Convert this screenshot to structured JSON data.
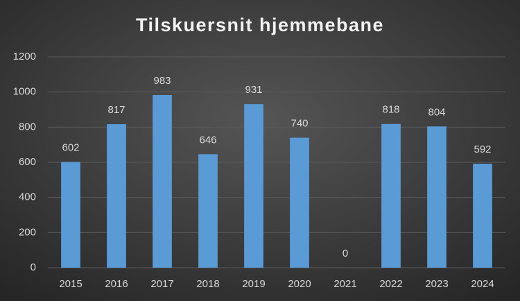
{
  "chart_data": {
    "type": "bar",
    "title": "Tilskuersnit hjemmebane",
    "categories": [
      "2015",
      "2016",
      "2017",
      "2018",
      "2019",
      "2020",
      "2021",
      "2022",
      "2023",
      "2024"
    ],
    "values": [
      602,
      817,
      983,
      646,
      931,
      740,
      0,
      818,
      804,
      592
    ],
    "color": "#5b9bd5",
    "ylim": [
      0,
      1200
    ],
    "yticks": [
      0,
      200,
      400,
      600,
      800,
      1000,
      1200
    ],
    "grid": true
  }
}
